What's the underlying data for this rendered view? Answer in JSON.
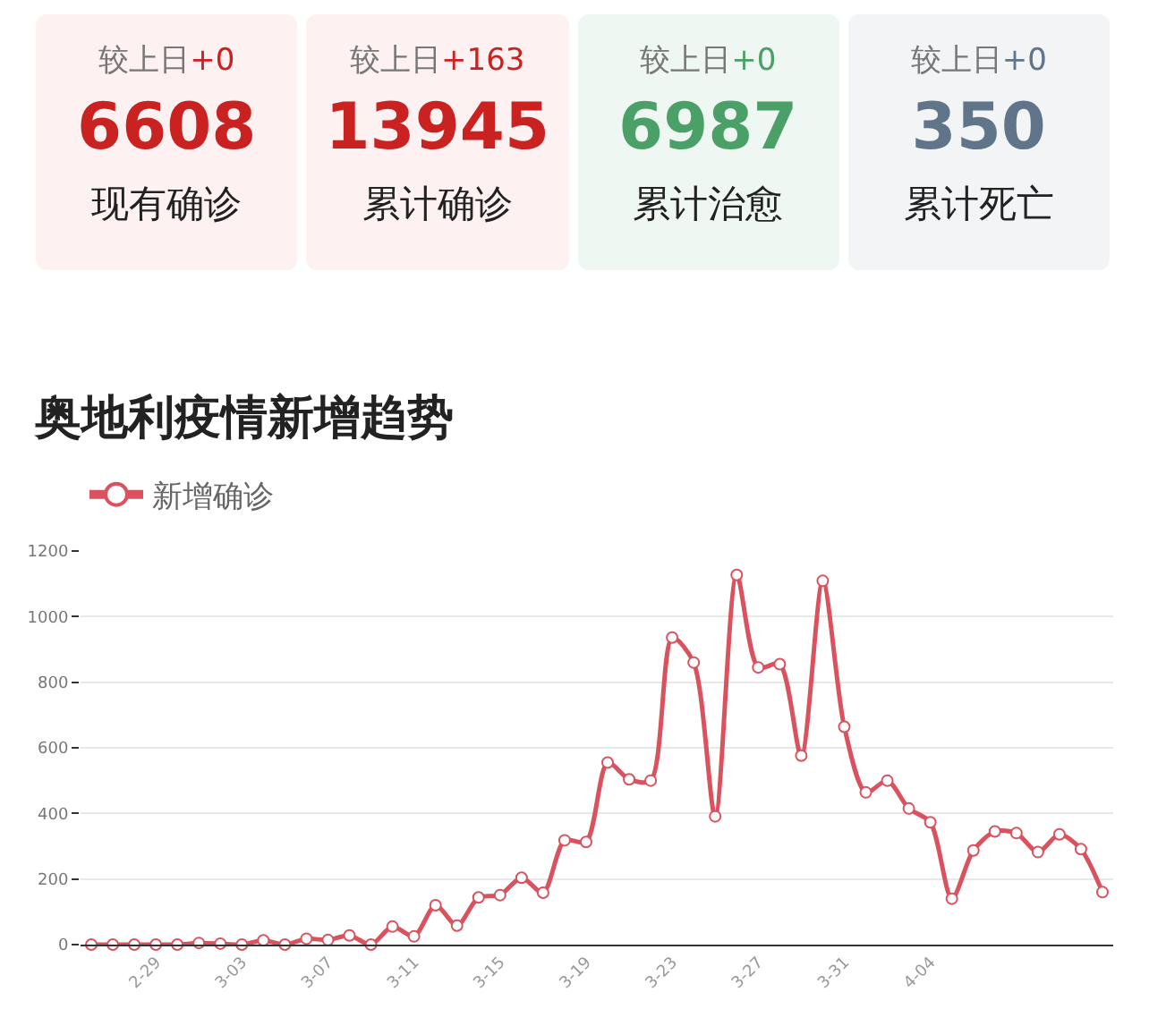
{
  "chart_data": [
    {
      "type": "other",
      "categories": [
        "现有确诊",
        "累计确诊",
        "累计治愈",
        "累计死亡"
      ],
      "values": [
        6608,
        13945,
        6987,
        350
      ],
      "data_labels": true,
      "colors": [
        "#fdf1f1",
        "#fdf1f1",
        "#eef7f1",
        "#f2f4f6"
      ],
      "annotations": [
        "较上日+0",
        "较上日+163",
        "较上日+0",
        "较上日+0"
      ]
    },
    {
      "type": "line",
      "title": "奥地利疫情新增趋势",
      "categories": [
        null,
        null,
        null,
        "2-29",
        null,
        null,
        null,
        "3-03",
        null,
        null,
        null,
        "3-07",
        null,
        null,
        null,
        "3-11",
        null,
        null,
        null,
        "3-15",
        null,
        null,
        null,
        "3-19",
        null,
        null,
        null,
        "3-23",
        null,
        null,
        null,
        "3-27",
        null,
        null,
        null,
        "3-31",
        null,
        null,
        null,
        "4-04",
        null,
        null,
        null,
        null,
        null,
        null,
        null,
        null
      ],
      "series": [
        {
          "name": "新增确诊",
          "color": "#d9525e",
          "values": [
            0,
            0,
            0,
            0,
            0,
            5,
            3,
            0,
            13,
            0,
            18,
            14,
            28,
            0,
            55,
            25,
            120,
            58,
            144,
            151,
            204,
            158,
            318,
            313,
            555,
            504,
            500,
            936,
            860,
            391,
            1127,
            845,
            855,
            576,
            1109,
            664,
            464,
            500,
            415,
            373,
            140,
            287,
            345,
            340,
            282,
            336,
            291,
            160
          ]
        }
      ],
      "ylim": [
        0,
        1200
      ],
      "yticks": [
        0,
        200,
        400,
        600,
        800,
        1000,
        1200
      ],
      "grid": "y",
      "legend": "top left",
      "marker": "circle",
      "line_style": "solid"
    }
  ]
}
